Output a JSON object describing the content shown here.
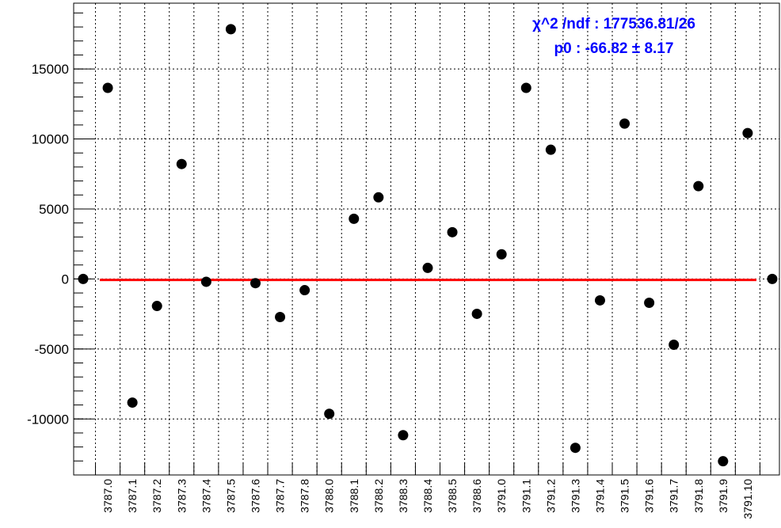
{
  "chart_data": {
    "type": "scatter",
    "categories": [
      null,
      "3787.0",
      "3787.1",
      "3787.2",
      "3787.3",
      "3787.4",
      "3787.5",
      "3787.6",
      "3787.7",
      "3787.8",
      "3788.0",
      "3788.1",
      "3788.2",
      "3788.3",
      "3788.4",
      "3788.5",
      "3788.6",
      "3791.0",
      "3791.1",
      "3791.2",
      "3791.3",
      "3791.4",
      "3791.5",
      "3791.6",
      "3791.7",
      "3791.8",
      "3791.9",
      "3791.10",
      null
    ],
    "values": [
      0,
      13650,
      -8830,
      -1930,
      8210,
      -200,
      17840,
      -300,
      -2720,
      -800,
      -9630,
      4300,
      5830,
      -11160,
      790,
      3340,
      -2490,
      1760,
      13650,
      9230,
      -12060,
      -1530,
      11100,
      -1700,
      -4700,
      6630,
      -13020,
      10420,
      0
    ],
    "color": "#000000",
    "ylim": [
      -14000,
      19700
    ],
    "yticks": [
      -10000,
      -5000,
      0,
      5000,
      10000,
      15000
    ],
    "grid": true,
    "fit": {
      "p0": -66.82,
      "color": "#ff0000"
    },
    "stats": [
      "χ^2 /ndf : 177536.81/26",
      "p0 : -66.82 ± 8.17"
    ]
  }
}
